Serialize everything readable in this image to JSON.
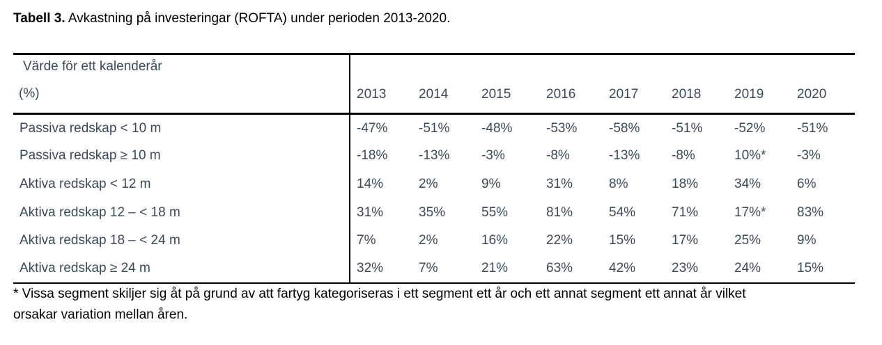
{
  "caption": {
    "label": "Tabell 3.",
    "text": " Avkastning på investeringar (ROFTA) under perioden 2013-2020."
  },
  "table": {
    "stub_header_line1": "Värde för ett kalenderår",
    "stub_header_line2": "(%)",
    "years": [
      "2013",
      "2014",
      "2015",
      "2016",
      "2017",
      "2018",
      "2019",
      "2020"
    ],
    "rows": [
      {
        "label": "Passiva redskap < 10 m",
        "values": [
          "-47%",
          "-51%",
          "-48%",
          "-53%",
          "-58%",
          "-51%",
          "-52%",
          "-51%"
        ]
      },
      {
        "label": "Passiva redskap  ≥ 10 m",
        "values": [
          "-18%",
          "-13%",
          "-3%",
          "-8%",
          "-13%",
          "-8%",
          "10%*",
          "-3%"
        ]
      },
      {
        "label": "Aktiva redskap < 12 m",
        "values": [
          "14%",
          "2%",
          "9%",
          "31%",
          "8%",
          "18%",
          "34%",
          "6%"
        ]
      },
      {
        "label": "Aktiva redskap 12 – < 18 m",
        "values": [
          "31%",
          "35%",
          "55%",
          "81%",
          "54%",
          "71%",
          "17%*",
          "83%"
        ]
      },
      {
        "label": "Aktiva redskap 18 – < 24 m",
        "values": [
          "7%",
          "2%",
          "16%",
          "22%",
          "15%",
          "17%",
          "25%",
          "9%"
        ]
      },
      {
        "label": "Aktiva redskap ≥ 24 m",
        "values": [
          "32%",
          "7%",
          "21%",
          "63%",
          "42%",
          "23%",
          "24%",
          "15%"
        ]
      }
    ]
  },
  "footnote": {
    "line1": "* Vissa segment skiljer sig åt på grund av att fartyg kategoriseras i ett segment ett år och ett annat segment ett annat år vilket",
    "line2": "orsakar variation mellan åren."
  }
}
